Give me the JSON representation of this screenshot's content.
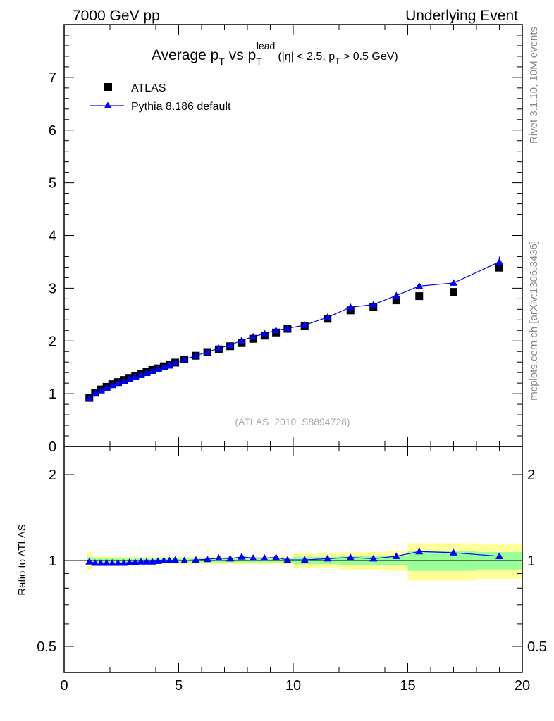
{
  "header": {
    "left": "7000 GeV pp",
    "right": "Underlying Event"
  },
  "side_labels": {
    "rivet": "Rivet 3.1.10,  10M events",
    "mcplots": "mcplots.cern.ch [arXiv:1306.3436]"
  },
  "watermark": "(ATLAS_2010_S8894728)",
  "colors": {
    "data": "#000000",
    "mc": "#0000ff",
    "band_inner": "#99ff99",
    "band_outer": "#ffff99"
  },
  "chart_data": [
    {
      "type": "scatter",
      "panel": "main",
      "title": "Average p_T vs p_T^lead (|η| < 2.5, p_T > 0.5 GeV)",
      "title_parts": {
        "a": "Average p",
        "a_sub": "T",
        "b": " vs p",
        "b_sub": "T",
        "b_sup": "lead",
        "c": "(|η| < 2.5, p",
        "c_sub": "T",
        "d": " > 0.5 GeV)"
      },
      "xlim": [
        0,
        20
      ],
      "ylim": [
        0,
        8
      ],
      "yticks": [
        "0",
        "1",
        "2",
        "3",
        "4",
        "5",
        "6",
        "7"
      ],
      "xticks": [
        "0",
        "5",
        "10",
        "15",
        "20"
      ],
      "legend": [
        "ATLAS",
        "Pythia 8.186 default"
      ],
      "legend_position": "top-left",
      "x": [
        1.1,
        1.35,
        1.6,
        1.85,
        2.1,
        2.35,
        2.6,
        2.85,
        3.1,
        3.35,
        3.6,
        3.85,
        4.1,
        4.35,
        4.6,
        4.85,
        5.25,
        5.75,
        6.25,
        6.75,
        7.25,
        7.75,
        8.25,
        8.75,
        9.25,
        9.75,
        10.5,
        11.5,
        12.5,
        13.5,
        14.5,
        15.5,
        17.0,
        19.0
      ],
      "series": [
        {
          "name": "ATLAS",
          "values": [
            0.92,
            1.02,
            1.08,
            1.13,
            1.18,
            1.22,
            1.26,
            1.3,
            1.34,
            1.37,
            1.41,
            1.45,
            1.48,
            1.52,
            1.55,
            1.59,
            1.65,
            1.72,
            1.79,
            1.84,
            1.9,
            1.96,
            2.04,
            2.1,
            2.16,
            2.23,
            2.29,
            2.42,
            2.58,
            2.64,
            2.77,
            2.85,
            2.93,
            3.39
          ]
        },
        {
          "name": "Pythia 8.186 default",
          "values": [
            0.91,
            1.0,
            1.06,
            1.11,
            1.16,
            1.2,
            1.24,
            1.28,
            1.32,
            1.35,
            1.39,
            1.43,
            1.47,
            1.51,
            1.55,
            1.59,
            1.65,
            1.72,
            1.79,
            1.86,
            1.92,
            2.01,
            2.08,
            2.14,
            2.2,
            2.24,
            2.3,
            2.45,
            2.64,
            2.69,
            2.86,
            3.04,
            3.1,
            3.5
          ],
          "errors": [
            0,
            0,
            0,
            0,
            0,
            0,
            0,
            0,
            0,
            0,
            0,
            0,
            0,
            0,
            0,
            0,
            0,
            0,
            0,
            0,
            0,
            0,
            0,
            0,
            0,
            0,
            0,
            0,
            0.02,
            0.02,
            0.03,
            0.05,
            0.04,
            0.1
          ]
        }
      ]
    },
    {
      "type": "line",
      "panel": "ratio",
      "ylabel": "Ratio to ATLAS",
      "scale": "log",
      "xlim": [
        0,
        20
      ],
      "ylim": [
        0.4,
        2.5
      ],
      "yticks": [
        "0.5",
        "1",
        "2"
      ],
      "xticks": [
        "0",
        "5",
        "10",
        "15",
        "20"
      ],
      "bands": [
        {
          "x0": 1.0,
          "x1": 1.25,
          "inner": 0.03,
          "outer": 0.07
        },
        {
          "x0": 1.25,
          "x1": 2.5,
          "inner": 0.02,
          "outer": 0.04
        },
        {
          "x0": 2.5,
          "x1": 5.0,
          "inner": 0.015,
          "outer": 0.03
        },
        {
          "x0": 5.0,
          "x1": 10.0,
          "inner": 0.015,
          "outer": 0.03
        },
        {
          "x0": 10.0,
          "x1": 12.0,
          "inner": 0.03,
          "outer": 0.06
        },
        {
          "x0": 12.0,
          "x1": 14.0,
          "inner": 0.035,
          "outer": 0.07
        },
        {
          "x0": 14.0,
          "x1": 15.0,
          "inner": 0.04,
          "outer": 0.08
        },
        {
          "x0": 15.0,
          "x1": 18.0,
          "inner": 0.08,
          "outer": 0.15
        },
        {
          "x0": 18.0,
          "x1": 20.0,
          "inner": 0.07,
          "outer": 0.14
        }
      ],
      "x": [
        1.1,
        1.35,
        1.6,
        1.85,
        2.1,
        2.35,
        2.6,
        2.85,
        3.1,
        3.35,
        3.6,
        3.85,
        4.1,
        4.35,
        4.6,
        4.85,
        5.25,
        5.75,
        6.25,
        6.75,
        7.25,
        7.75,
        8.25,
        8.75,
        9.25,
        9.75,
        10.5,
        11.5,
        12.5,
        13.5,
        14.5,
        15.5,
        17.0,
        19.0
      ],
      "series": [
        {
          "name": "Pythia 8.186 default",
          "values": [
            0.99,
            0.98,
            0.98,
            0.98,
            0.98,
            0.98,
            0.98,
            0.985,
            0.985,
            0.99,
            0.99,
            0.99,
            0.995,
            1.0,
            1.0,
            1.005,
            1.0,
            1.005,
            1.01,
            1.02,
            1.015,
            1.03,
            1.02,
            1.02,
            1.025,
            1.005,
            1.005,
            1.015,
            1.025,
            1.015,
            1.035,
            1.075,
            1.065,
            1.035
          ]
        }
      ]
    }
  ]
}
